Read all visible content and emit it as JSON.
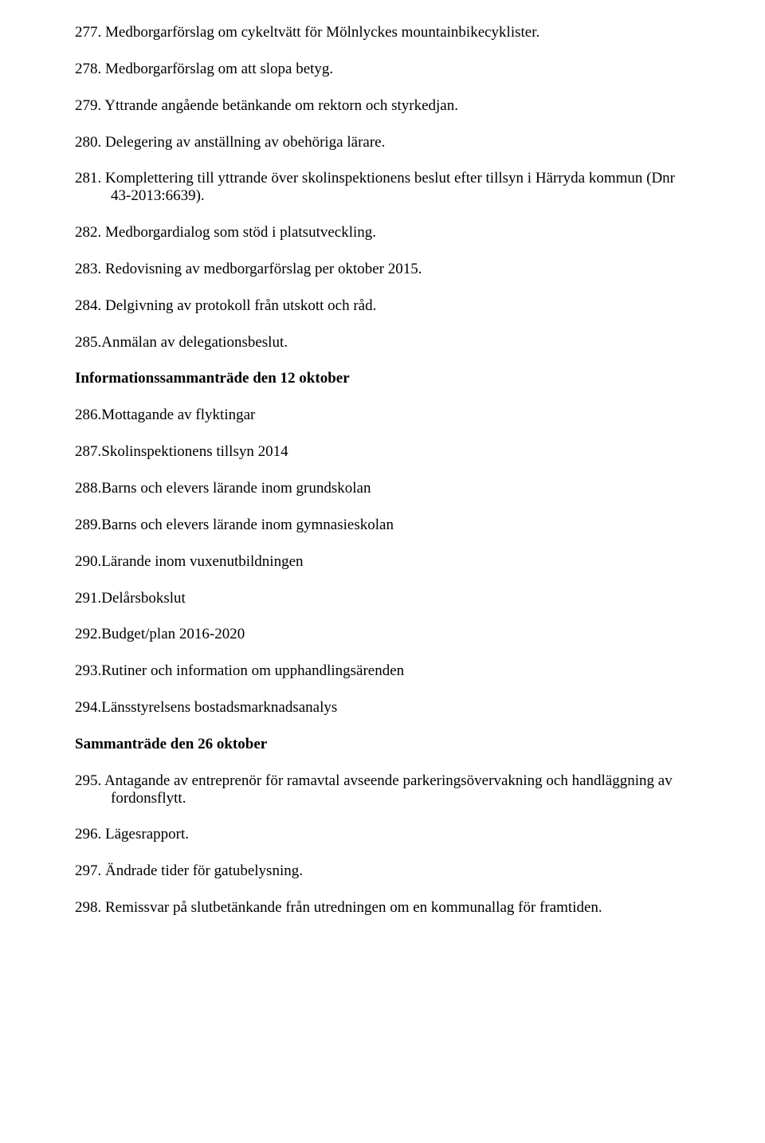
{
  "items": [
    {
      "n": "277.",
      "t": "Medborgarförslag om cykeltvätt för Mölnlyckes mountainbikecyklister.",
      "style": "hanging"
    },
    {
      "n": "278.",
      "t": "Medborgarförslag om att slopa betyg.",
      "style": "hanging"
    },
    {
      "n": "279.",
      "t": "Yttrande angående betänkande om rektorn och styrkedjan.",
      "style": "hanging"
    },
    {
      "n": "280.",
      "t": "Delegering av anställning av obehöriga lärare.",
      "style": "hanging"
    },
    {
      "n": "281.",
      "t": "Komplettering till yttrande över skolinspektionens beslut efter tillsyn i Härryda kommun (Dnr 43-2013:6639).",
      "style": "hanging"
    },
    {
      "n": "282.",
      "t": "Medborgardialog som stöd i platsutveckling.",
      "style": "hanging"
    },
    {
      "n": "283.",
      "t": "Redovisning av medborgarförslag per oktober 2015.",
      "style": "hanging"
    },
    {
      "n": "284.",
      "t": "Delgivning av protokoll från utskott och råd.",
      "style": "hanging"
    },
    {
      "n": "285.",
      "t": "Anmälan av delegationsbeslut.",
      "style": "nodot"
    }
  ],
  "heading1": "Informationssammanträde den 12 oktober",
  "items2": [
    {
      "n": "286.",
      "t": "Mottagande av flyktingar",
      "style": "nodot"
    },
    {
      "n": "287.",
      "t": "Skolinspektionens tillsyn 2014",
      "style": "nodot"
    },
    {
      "n": "288.",
      "t": "Barns och elevers lärande inom grundskolan",
      "style": "nodot"
    },
    {
      "n": "289.",
      "t": "Barns och elevers lärande inom gymnasieskolan",
      "style": "nodot"
    },
    {
      "n": "290.",
      "t": "Lärande inom vuxenutbildningen",
      "style": "nodot"
    },
    {
      "n": "291.",
      "t": "Delårsbokslut",
      "style": "nodot"
    },
    {
      "n": "292.",
      "t": "Budget/plan 2016-2020",
      "style": "nodot"
    },
    {
      "n": "293.",
      "t": "Rutiner och information om upphandlingsärenden",
      "style": "nodot"
    },
    {
      "n": "294.",
      "t": "Länsstyrelsens bostadsmarknadsanalys",
      "style": "nodot"
    }
  ],
  "heading2": "Sammanträde den 26 oktober",
  "items3": [
    {
      "n": "295.",
      "t": "Antagande av entreprenör för ramavtal avseende parkeringsövervakning och handläggning av fordonsflytt.",
      "style": "hanging"
    },
    {
      "n": "296.",
      "t": "Lägesrapport.",
      "style": "hanging"
    },
    {
      "n": "297.",
      "t": "Ändrade tider för gatubelysning.",
      "style": "hanging"
    },
    {
      "n": "298.",
      "t": "Remissvar på slutbetänkande från utredningen om en kommunallag för framtiden.",
      "style": "hanging"
    }
  ]
}
